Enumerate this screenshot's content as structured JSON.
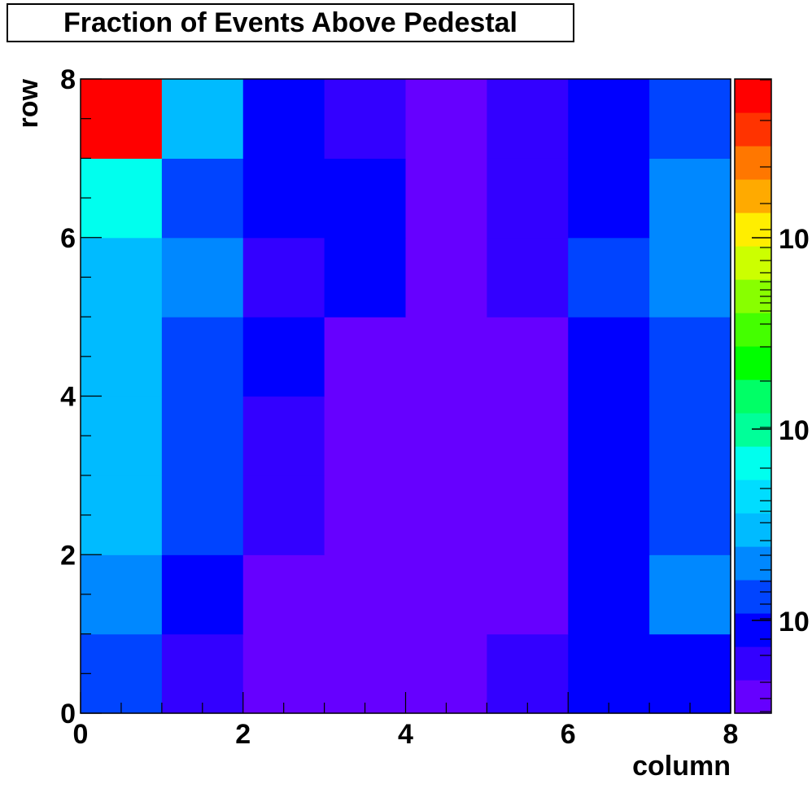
{
  "chart_data": {
    "type": "heatmap",
    "title": "Fraction of Events Above Pedestal",
    "xlabel": "column",
    "ylabel": "row",
    "xlim": [
      0,
      8
    ],
    "ylim": [
      0,
      8
    ],
    "x_ticks": [
      "0",
      "2",
      "4",
      "6",
      "8"
    ],
    "y_ticks": [
      "0",
      "2",
      "4",
      "6",
      "8"
    ],
    "color_scale": "log",
    "colorbar_labels": [
      "10",
      "10",
      "10"
    ],
    "palette": [
      "#6600ff",
      "#3300ff",
      "#0000ff",
      "#0044ff",
      "#0088ff",
      "#00bbff",
      "#00ddff",
      "#00ffee",
      "#00ff99",
      "#00ff66",
      "#00ff00",
      "#44ff00",
      "#88ff00",
      "#ccff00",
      "#ffee00",
      "#ffaa00",
      "#ff7700",
      "#ff3300",
      "#ff0000"
    ],
    "cells": [
      [
        3,
        1,
        0,
        0,
        0,
        1,
        2,
        2
      ],
      [
        4,
        2,
        0,
        0,
        0,
        0,
        2,
        4
      ],
      [
        5,
        3,
        1,
        0,
        0,
        0,
        2,
        3
      ],
      [
        5,
        3,
        1,
        0,
        0,
        0,
        2,
        3
      ],
      [
        5,
        3,
        2,
        0,
        0,
        0,
        2,
        3
      ],
      [
        5,
        4,
        1,
        2,
        0,
        1,
        3,
        4
      ],
      [
        7,
        3,
        2,
        2,
        0,
        1,
        2,
        4
      ],
      [
        18,
        5,
        2,
        1,
        0,
        1,
        2,
        3
      ]
    ]
  }
}
